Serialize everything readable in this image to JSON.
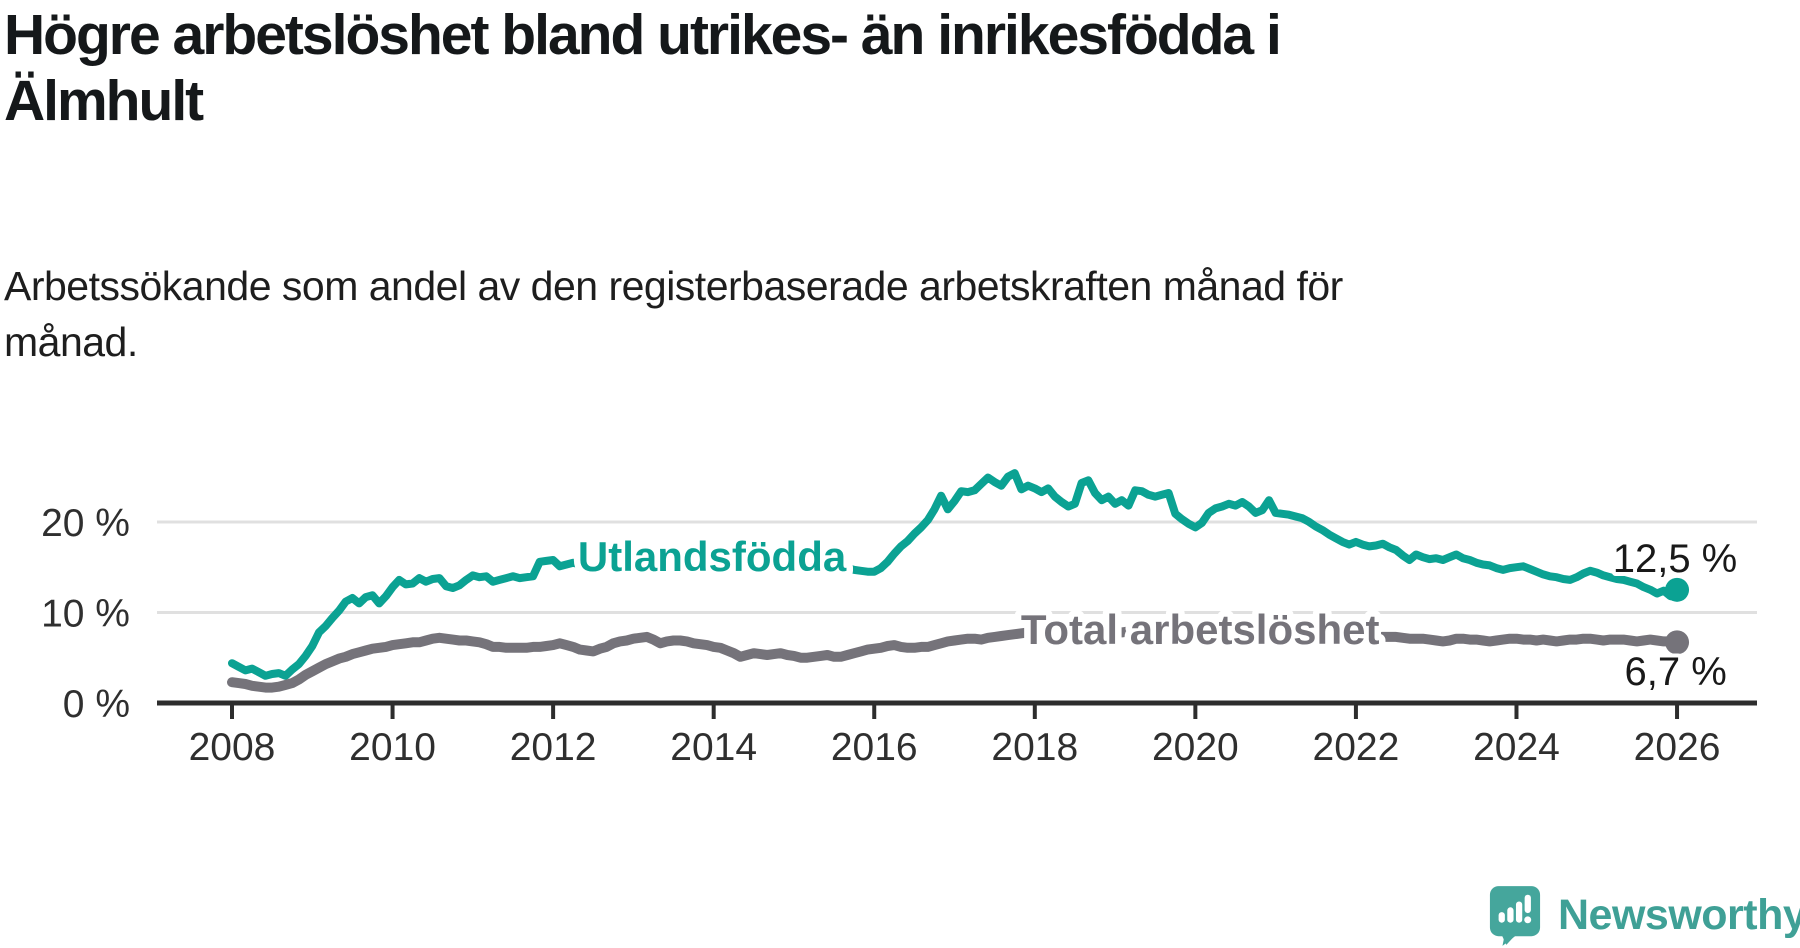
{
  "chart_data": {
    "type": "line",
    "title": "Högre arbetslöshet bland utrikes- än inrikesfödda i\nÄlmhult",
    "subtitle": "Arbetssökande som andel av den registerbaserade arbetskraften månad för\nmånad.",
    "x_axis": {
      "ticks": [
        2008,
        2010,
        2012,
        2014,
        2016,
        2018,
        2020,
        2022,
        2024,
        2026
      ],
      "xlim": [
        2007.1,
        2027.0
      ],
      "unit": "year"
    },
    "y_axis": {
      "unit": "%",
      "ylim": [
        0,
        27
      ],
      "ticks": [
        {
          "value": 0,
          "label": "0 %"
        },
        {
          "value": 10,
          "label": "10 %"
        },
        {
          "value": 20,
          "label": "20 %"
        }
      ]
    },
    "grid": "horizontal-only",
    "legend_position": "inline-labels",
    "time": {
      "start_year": 2008,
      "points_per_year": 12
    },
    "series": [
      {
        "id": "utlandsfodda",
        "name": "Utlandsfödda",
        "color": "#0ba293",
        "line_width": 8,
        "label": {
          "text": "Utlandsfödda",
          "year": 2013.98,
          "pct": 16.1
        },
        "end_label": {
          "text": "12,5 %",
          "year": 2026.75,
          "pct": 16.0
        },
        "end_value": "12,5 %",
        "values": [
          4.4,
          4.0,
          3.6,
          3.8,
          3.4,
          3.0,
          3.2,
          3.3,
          3.0,
          3.7,
          4.3,
          5.2,
          6.3,
          7.8,
          8.5,
          9.4,
          10.2,
          11.2,
          11.6,
          11.0,
          11.7,
          11.9,
          11.0,
          11.8,
          12.8,
          13.6,
          13.1,
          13.2,
          13.8,
          13.4,
          13.7,
          13.8,
          12.9,
          12.7,
          13.0,
          13.6,
          14.1,
          13.9,
          14.0,
          13.4,
          13.6,
          13.8,
          14.0,
          13.8,
          13.9,
          14.0,
          15.6,
          15.7,
          15.8,
          15.1,
          15.3,
          15.5,
          15.3,
          15.1,
          15.0,
          15.2,
          15.4,
          15.3,
          15.5,
          15.4,
          15.3,
          15.5,
          15.7,
          15.5,
          15.2,
          15.4,
          15.6,
          15.5,
          15.3,
          15.5,
          15.6,
          15.8,
          15.9,
          16.0,
          15.8,
          15.6,
          15.7,
          15.5,
          15.4,
          15.6,
          15.5,
          15.4,
          15.6,
          15.5,
          15.6,
          15.4,
          15.2,
          15.3,
          15.1,
          15.0,
          15.2,
          15.0,
          14.9,
          14.7,
          14.6,
          14.5,
          14.5,
          14.9,
          15.6,
          16.5,
          17.3,
          17.9,
          18.7,
          19.4,
          20.2,
          21.4,
          22.9,
          21.4,
          22.3,
          23.4,
          23.3,
          23.5,
          24.2,
          24.9,
          24.4,
          24.0,
          25.0,
          25.4,
          23.6,
          24.0,
          23.7,
          23.3,
          23.7,
          22.8,
          22.2,
          21.7,
          22.0,
          24.3,
          24.6,
          23.2,
          22.4,
          22.8,
          22.0,
          22.4,
          21.8,
          23.5,
          23.4,
          23.0,
          22.8,
          23.0,
          23.2,
          20.9,
          20.3,
          19.8,
          19.4,
          19.9,
          21.0,
          21.5,
          21.7,
          22.0,
          21.8,
          22.2,
          21.7,
          21.0,
          21.3,
          22.4,
          21.0,
          20.9,
          20.8,
          20.6,
          20.4,
          20.0,
          19.5,
          19.1,
          18.6,
          18.2,
          17.8,
          17.5,
          17.8,
          17.5,
          17.3,
          17.4,
          17.6,
          17.2,
          16.9,
          16.3,
          15.8,
          16.4,
          16.1,
          15.9,
          16.0,
          15.8,
          16.1,
          16.4,
          16.0,
          15.8,
          15.5,
          15.3,
          15.2,
          14.9,
          14.7,
          14.9,
          15.0,
          15.1,
          14.8,
          14.5,
          14.2,
          14.0,
          13.9,
          13.7,
          13.6,
          13.9,
          14.3,
          14.6,
          14.4,
          14.1,
          13.9,
          13.7,
          13.6,
          13.4,
          13.2,
          12.8,
          12.5,
          12.1,
          12.4,
          11.8,
          12.5
        ]
      },
      {
        "id": "total",
        "name": "Total arbetslöshet",
        "color": "#75737a",
        "line_width": 10,
        "label": {
          "text": "Total arbetslöshet",
          "year": 2020.06,
          "pct": 8.05
        },
        "end_label": {
          "text": "6,7 %",
          "year": 2026.62,
          "pct": 3.55
        },
        "end_value": "6,7 %",
        "values": [
          2.3,
          2.2,
          2.1,
          1.9,
          1.8,
          1.7,
          1.7,
          1.8,
          2.0,
          2.2,
          2.6,
          3.1,
          3.5,
          3.9,
          4.3,
          4.6,
          4.9,
          5.1,
          5.4,
          5.6,
          5.8,
          6.0,
          6.1,
          6.2,
          6.4,
          6.5,
          6.6,
          6.7,
          6.7,
          6.9,
          7.1,
          7.2,
          7.1,
          7.0,
          6.9,
          6.9,
          6.8,
          6.7,
          6.5,
          6.2,
          6.2,
          6.1,
          6.1,
          6.1,
          6.1,
          6.2,
          6.2,
          6.3,
          6.4,
          6.6,
          6.4,
          6.2,
          5.9,
          5.8,
          5.7,
          6.0,
          6.2,
          6.6,
          6.8,
          6.9,
          7.1,
          7.2,
          7.3,
          7.0,
          6.6,
          6.8,
          6.9,
          6.9,
          6.8,
          6.6,
          6.5,
          6.4,
          6.2,
          6.1,
          5.8,
          5.5,
          5.1,
          5.3,
          5.5,
          5.4,
          5.3,
          5.4,
          5.5,
          5.3,
          5.2,
          5.0,
          5.0,
          5.1,
          5.2,
          5.3,
          5.1,
          5.1,
          5.3,
          5.5,
          5.7,
          5.9,
          6.0,
          6.1,
          6.3,
          6.4,
          6.2,
          6.1,
          6.1,
          6.2,
          6.2,
          6.4,
          6.6,
          6.8,
          6.9,
          7.0,
          7.1,
          7.1,
          7.0,
          7.2,
          7.3,
          7.4,
          7.5,
          7.6,
          7.7,
          7.8,
          7.9,
          8.0,
          8.1,
          8.1,
          8.0,
          8.0,
          7.9,
          8.0,
          8.0,
          7.9,
          7.9,
          7.9,
          7.8,
          7.8,
          7.9,
          7.8,
          7.7,
          7.8,
          7.9,
          7.8,
          7.8,
          7.7,
          7.8,
          7.9,
          7.9,
          8.0,
          8.3,
          8.5,
          8.6,
          8.5,
          8.4,
          8.3,
          8.2,
          8.1,
          8.0,
          8.0,
          8.0,
          7.9,
          7.9,
          7.8,
          7.8,
          7.7,
          7.6,
          7.6,
          7.5,
          7.5,
          7.4,
          7.4,
          7.5,
          7.4,
          7.4,
          7.3,
          7.3,
          7.3,
          7.3,
          7.2,
          7.1,
          7.1,
          7.1,
          7.0,
          6.9,
          6.8,
          6.9,
          7.1,
          7.1,
          7.0,
          7.0,
          6.9,
          6.8,
          6.9,
          7.0,
          7.1,
          7.1,
          7.0,
          7.0,
          6.9,
          7.0,
          6.9,
          6.8,
          6.9,
          7.0,
          7.0,
          7.1,
          7.1,
          7.0,
          6.9,
          7.0,
          7.0,
          7.0,
          6.9,
          6.8,
          6.9,
          7.0,
          6.9,
          6.8,
          6.8,
          6.7
        ]
      }
    ],
    "style": {
      "grid_color": "#e0e0e0",
      "axis_color": "#2d2d2d",
      "tick_text_color": "#2f2f2f",
      "background": "#ffffff"
    }
  },
  "footer": {
    "brand": "Newsworthy",
    "brand_text_color": "#3fa096",
    "brand_icon_color": "#45a69c"
  }
}
